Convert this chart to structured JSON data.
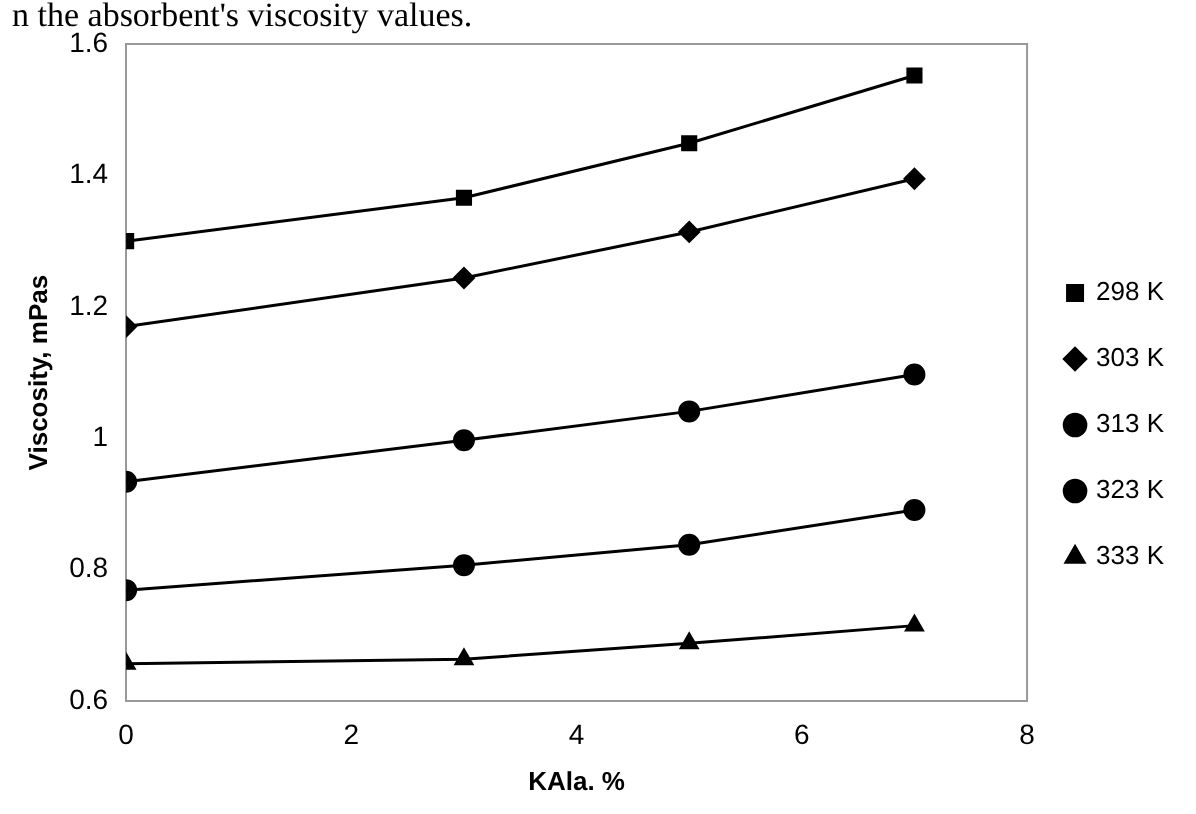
{
  "chart_data": {
    "type": "line",
    "xlabel": "KAla. %",
    "ylabel": "Viscosity, mPas",
    "annotations": [
      "n the absorbent's viscosity values."
    ],
    "x": [
      0,
      3,
      5,
      7
    ],
    "xlim": [
      0,
      8
    ],
    "xticks": [
      0,
      2,
      4,
      6,
      8
    ],
    "ylim": [
      0.6,
      1.6
    ],
    "yticks": [
      0.6,
      0.8,
      1,
      1.2,
      1.4,
      1.6
    ],
    "grid": false,
    "legend": "right",
    "line_style": "solid",
    "series": [
      {
        "name": "298 K",
        "color": "#000000",
        "marker": "square",
        "values": [
          1.3,
          1.366,
          1.449,
          1.552
        ]
      },
      {
        "name": "303 K",
        "color": "#000000",
        "marker": "diamond",
        "values": [
          1.17,
          1.244,
          1.314,
          1.395
        ]
      },
      {
        "name": "313 K",
        "color": "#000000",
        "marker": "circle",
        "values": [
          0.934,
          0.997,
          1.041,
          1.097
        ]
      },
      {
        "name": "323 K",
        "color": "#000000",
        "marker": "circle",
        "values": [
          0.769,
          0.807,
          0.838,
          0.891
        ]
      },
      {
        "name": "333 K",
        "color": "#000000",
        "marker": "triangle",
        "values": [
          0.657,
          0.664,
          0.688,
          0.715
        ]
      }
    ]
  }
}
